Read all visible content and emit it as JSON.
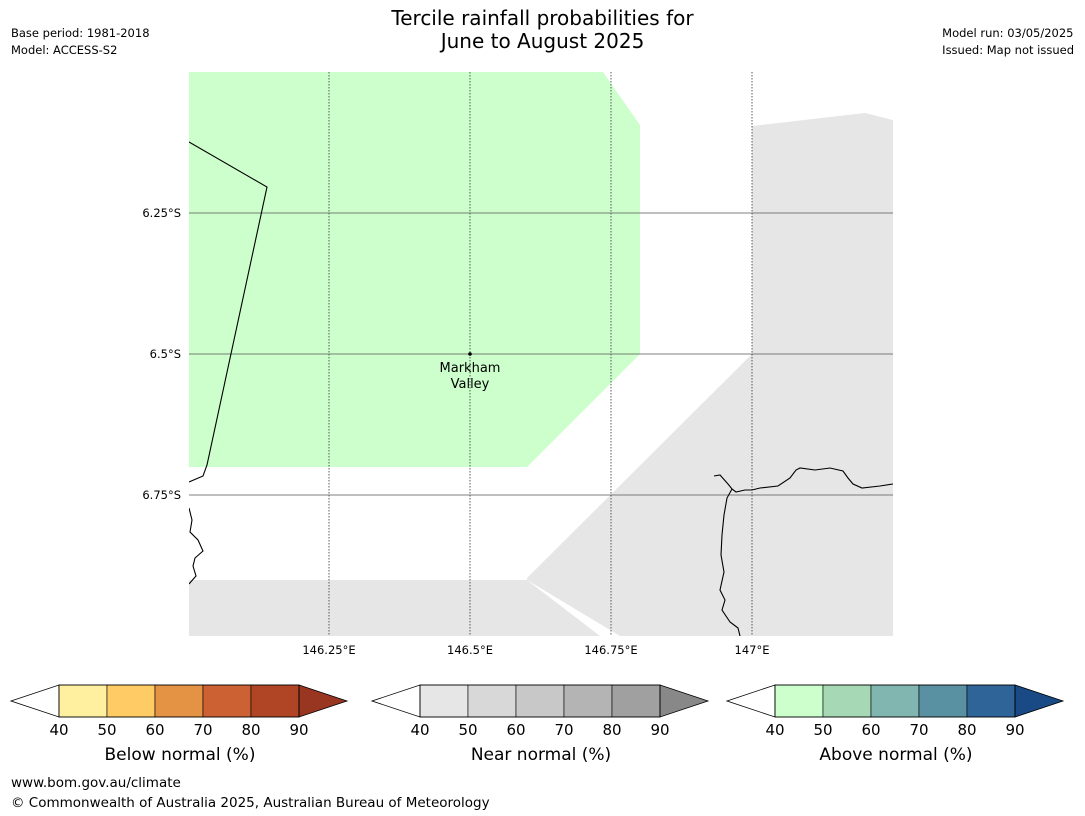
{
  "header": {
    "title_line1": "Tercile rainfall probabilities for",
    "title_line2": "June to August 2025",
    "base_period": "Base period: 1981-2018",
    "model": "Model: ACCESS-S2",
    "model_run": "Model run: 03/05/2025",
    "issued": "Issued: Map not issued"
  },
  "map": {
    "place_label_line1": "Markham",
    "place_label_line2": "Valley",
    "lat_labels": [
      "6.25°S",
      "6.5°S",
      "6.75°S"
    ],
    "lon_labels": [
      "146.25°E",
      "146.5°E",
      "146.75°E",
      "147°E"
    ],
    "colors": {
      "above_fill": "#ccffcc",
      "near_fill": "#e6e6e6",
      "coast": "#000000",
      "grid": "#555555"
    }
  },
  "colorbars": [
    {
      "label": "Below normal (%)",
      "ticks": [
        "40",
        "50",
        "60",
        "70",
        "80",
        "90"
      ],
      "colors": [
        "#fff0a0",
        "#fecb64",
        "#e39343",
        "#cc6233",
        "#b04525",
        "#993622"
      ]
    },
    {
      "label": "Near normal (%)",
      "ticks": [
        "40",
        "50",
        "60",
        "70",
        "80",
        "90"
      ],
      "colors": [
        "#e6e6e6",
        "#d8d8d8",
        "#c8c8c8",
        "#b4b4b4",
        "#a0a0a0",
        "#888888"
      ]
    },
    {
      "label": "Above normal (%)",
      "ticks": [
        "40",
        "50",
        "60",
        "70",
        "80",
        "90"
      ],
      "colors": [
        "#ccffcc",
        "#a6d8b6",
        "#80b5b0",
        "#5a91a2",
        "#2f6499",
        "#1a4a85"
      ]
    }
  ],
  "footer": {
    "website": "www.bom.gov.au/climate",
    "copyright": "© Commonwealth of Australia 2025, Australian Bureau of Meteorology"
  }
}
